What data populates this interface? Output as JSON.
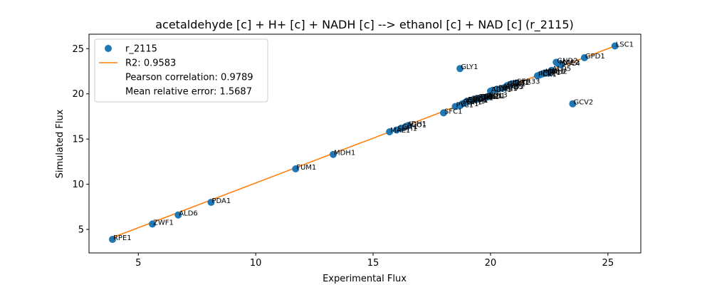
{
  "chart_data": {
    "type": "scatter",
    "title": "acetaldehyde [c] + H+ [c] + NADH [c] --> ethanol [c] + NAD [c] (r_2115)",
    "xlabel": "Experimental Flux",
    "ylabel": "Simulated Flux",
    "xlim": [
      2.9,
      26.4
    ],
    "ylim": [
      2.4,
      26.6
    ],
    "xticks": [
      5,
      10,
      15,
      20,
      25
    ],
    "yticks": [
      5,
      10,
      15,
      20,
      25
    ],
    "grid": false,
    "legend_position": "top-left",
    "legend": {
      "points_label": "r_2115",
      "fit_label": "R2: 0.9583",
      "pearson_text": "Pearson correlation: 0.9789",
      "mre_text": "Mean relative error: 1.5687"
    },
    "colors": {
      "points": "#1f77b4",
      "fit": "#ff7f0e"
    },
    "fit_line": {
      "x": [
        3.9,
        25.3
      ],
      "y": [
        4.1,
        25.3
      ]
    },
    "points": [
      {
        "label": "RPE1",
        "x": 3.9,
        "y": 3.9
      },
      {
        "label": "ZWF1",
        "x": 5.6,
        "y": 5.6
      },
      {
        "label": "ALD6",
        "x": 6.7,
        "y": 6.6
      },
      {
        "label": "PDA1",
        "x": 8.1,
        "y": 8.0
      },
      {
        "label": "FUM1",
        "x": 11.7,
        "y": 11.7
      },
      {
        "label": "MDH1",
        "x": 13.3,
        "y": 13.3
      },
      {
        "label": "MAE1",
        "x": 15.7,
        "y": 15.8
      },
      {
        "label": "SDH1",
        "x": 16.0,
        "y": 16.0
      },
      {
        "label": "CIT1",
        "x": 16.2,
        "y": 16.2
      },
      {
        "label": "ACO1",
        "x": 16.4,
        "y": 16.4
      },
      {
        "label": "IDH1",
        "x": 16.5,
        "y": 16.5
      },
      {
        "label": "SFC1",
        "x": 18.0,
        "y": 17.9
      },
      {
        "label": "PYC1",
        "x": 18.5,
        "y": 18.6
      },
      {
        "label": "CTP1",
        "x": 18.7,
        "y": 18.7
      },
      {
        "label": "GLY1",
        "x": 18.7,
        "y": 22.8
      },
      {
        "label": "PGK1",
        "x": 18.8,
        "y": 18.9
      },
      {
        "label": "TDH3",
        "x": 18.9,
        "y": 19.0
      },
      {
        "label": "GPM1",
        "x": 19.0,
        "y": 19.1
      },
      {
        "label": "ENO1",
        "x": 19.0,
        "y": 19.2
      },
      {
        "label": "TPI1",
        "x": 19.2,
        "y": 19.3
      },
      {
        "label": "FBA1",
        "x": 19.3,
        "y": 19.4
      },
      {
        "label": "PGI1",
        "x": 19.4,
        "y": 19.4
      },
      {
        "label": "TAL1",
        "x": 19.5,
        "y": 19.5
      },
      {
        "label": "TKL1",
        "x": 19.6,
        "y": 19.5
      },
      {
        "label": "GND1",
        "x": 19.7,
        "y": 19.6
      },
      {
        "label": "RKI1",
        "x": 19.8,
        "y": 19.6
      },
      {
        "label": "SOL3",
        "x": 19.9,
        "y": 19.7
      },
      {
        "label": "ADH1",
        "x": 20.0,
        "y": 20.3
      },
      {
        "label": "CDC19",
        "x": 20.1,
        "y": 20.4
      },
      {
        "label": "PDC1",
        "x": 20.3,
        "y": 20.5
      },
      {
        "label": "ADH5",
        "x": 20.5,
        "y": 20.6
      },
      {
        "label": "ACS1",
        "x": 20.6,
        "y": 20.7
      },
      {
        "label": "PFK1",
        "x": 20.7,
        "y": 20.9
      },
      {
        "label": "ICL1",
        "x": 20.8,
        "y": 21.0
      },
      {
        "label": "IDP1",
        "x": 20.9,
        "y": 21.1
      },
      {
        "label": "CIT2",
        "x": 21.0,
        "y": 21.1
      },
      {
        "label": "SER33",
        "x": 21.1,
        "y": 21.2
      },
      {
        "label": "PCK1",
        "x": 22.0,
        "y": 22.0
      },
      {
        "label": "ICL2",
        "x": 22.1,
        "y": 22.1
      },
      {
        "label": "FBP1",
        "x": 22.2,
        "y": 22.2
      },
      {
        "label": "MLS1",
        "x": 22.3,
        "y": 22.3
      },
      {
        "label": "DAL7",
        "x": 22.4,
        "y": 22.3
      },
      {
        "label": "IDH2",
        "x": 22.5,
        "y": 22.3
      },
      {
        "label": "ALD5",
        "x": 22.6,
        "y": 22.6
      },
      {
        "label": "GND2",
        "x": 22.8,
        "y": 23.5
      },
      {
        "label": "MAE2",
        "x": 22.9,
        "y": 23.3
      },
      {
        "label": "SOL4",
        "x": 23.0,
        "y": 23.2
      },
      {
        "label": "GCV2",
        "x": 23.5,
        "y": 18.9
      },
      {
        "label": "GPD1",
        "x": 24.0,
        "y": 24.0
      },
      {
        "label": "LSC1",
        "x": 25.3,
        "y": 25.3
      }
    ]
  }
}
